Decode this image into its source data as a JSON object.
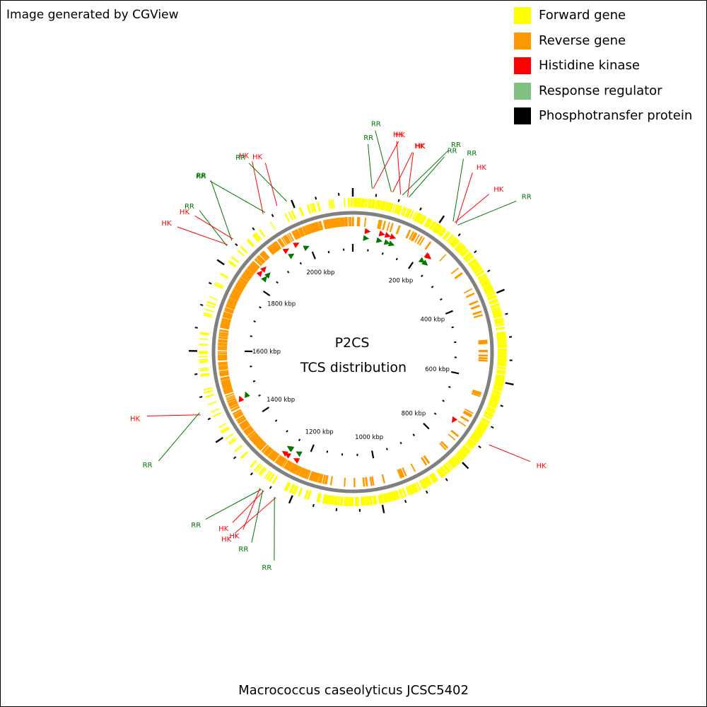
{
  "credit": "Image generated by CGView",
  "organism": "Macrococcus caseolyticus JCSC5402",
  "center_title": "P2CS",
  "center_subtitle": "TCS distribution",
  "legend": [
    {
      "label": "Forward gene",
      "color": "#ffff00"
    },
    {
      "label": "Reverse gene",
      "color": "#ff9900"
    },
    {
      "label": "Histidine kinase",
      "color": "#ff0000"
    },
    {
      "label": "Response regulator",
      "color": "#80c080"
    },
    {
      "label": "Phosphotransfer protein",
      "color": "#000000"
    }
  ],
  "colors": {
    "forward_gene": "#ffff00",
    "reverse_gene": "#ff9900",
    "backbone": "#808080",
    "hk": "#ff0000",
    "rr": "#007700",
    "tick": "#000000"
  },
  "genome_length_kbp": 2130,
  "kbp_labels": [
    {
      "text": "200 kbp",
      "kbp": 200
    },
    {
      "text": "400 kbp",
      "kbp": 400
    },
    {
      "text": "600 kbp",
      "kbp": 600
    },
    {
      "text": "800 kbp",
      "kbp": 800
    },
    {
      "text": "1000 kbp",
      "kbp": 1000
    },
    {
      "text": "1200 kbp",
      "kbp": 1200
    },
    {
      "text": "1400 kbp",
      "kbp": 1400
    },
    {
      "text": "1600 kbp",
      "kbp": 1600
    },
    {
      "text": "1800 kbp",
      "kbp": 1800
    },
    {
      "text": "2000 kbp",
      "kbp": 2000
    }
  ],
  "tcs_features": [
    {
      "type": "RR",
      "kbp": 40,
      "label": "RR"
    },
    {
      "type": "HK",
      "kbp": 42,
      "label": "HK"
    },
    {
      "type": "RR",
      "kbp": 80,
      "label": "RR"
    },
    {
      "type": "HK",
      "kbp": 83,
      "label": "HK"
    },
    {
      "type": "HK",
      "kbp": 100,
      "label": "HK"
    },
    {
      "type": "RR",
      "kbp": 104,
      "label": "RR"
    },
    {
      "type": "HK",
      "kbp": 115,
      "label": "HK"
    },
    {
      "type": "RR",
      "kbp": 118,
      "label": "RR"
    },
    {
      "type": "RR",
      "kbp": 222,
      "label": "RR"
    },
    {
      "type": "HK",
      "kbp": 226,
      "label": "HK"
    },
    {
      "type": "HK",
      "kbp": 230,
      "label": "HK"
    },
    {
      "type": "RR",
      "kbp": 234,
      "label": "RR"
    },
    {
      "type": "HK",
      "kbp": 735,
      "label": "HK"
    },
    {
      "type": "HK",
      "kbp": 1230,
      "label": "HK"
    },
    {
      "type": "RR",
      "kbp": 1233,
      "label": "RR"
    },
    {
      "type": "HK",
      "kbp": 1258,
      "label": "HK"
    },
    {
      "type": "RR",
      "kbp": 1261,
      "label": "RR"
    },
    {
      "type": "RR",
      "kbp": 1264,
      "label": "RR"
    },
    {
      "type": "HK",
      "kbp": 1268,
      "label": "HK"
    },
    {
      "type": "HK",
      "kbp": 1465,
      "label": "HK"
    },
    {
      "type": "RR",
      "kbp": 1470,
      "label": "RR"
    },
    {
      "type": "RR",
      "kbp": 1835,
      "label": "RR"
    },
    {
      "type": "HK",
      "kbp": 1838,
      "label": "HK"
    },
    {
      "type": "RR",
      "kbp": 1850,
      "label": "RR"
    },
    {
      "type": "HK",
      "kbp": 1854,
      "label": "HK"
    },
    {
      "type": "HK",
      "kbp": 1935,
      "label": "HK"
    },
    {
      "type": "RR",
      "kbp": 1940,
      "label": "RR"
    },
    {
      "type": "HK",
      "kbp": 1968,
      "label": "HK"
    },
    {
      "type": "RR",
      "kbp": 1990,
      "label": "RR"
    }
  ]
}
